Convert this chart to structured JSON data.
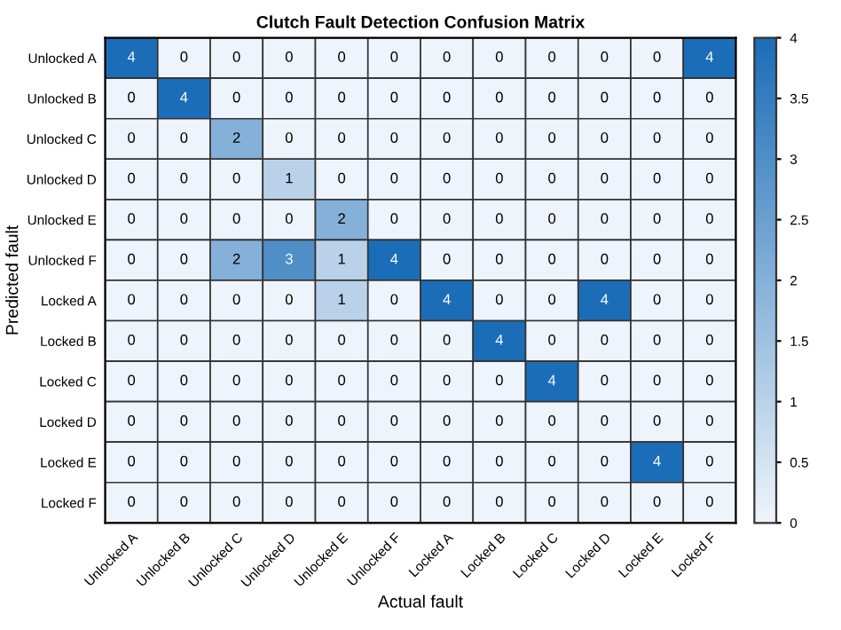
{
  "chart_data": {
    "type": "heatmap",
    "title": "Clutch Fault Detection Confusion Matrix",
    "xlabel": "Actual fault",
    "ylabel": "Predicted fault",
    "categories": [
      "Unlocked A",
      "Unlocked B",
      "Unlocked C",
      "Unlocked D",
      "Unlocked E",
      "Unlocked F",
      "Locked A",
      "Locked B",
      "Locked C",
      "Locked D",
      "Locked E",
      "Locked F"
    ],
    "y_categories": [
      "Unlocked A",
      "Unlocked B",
      "Unlocked C",
      "Unlocked D",
      "Unlocked E",
      "Unlocked F",
      "Locked A",
      "Locked B",
      "Locked C",
      "Locked D",
      "Locked E",
      "Locked F"
    ],
    "cells": [
      [
        4,
        0,
        0,
        0,
        0,
        0,
        0,
        0,
        0,
        0,
        0,
        4
      ],
      [
        0,
        4,
        0,
        0,
        0,
        0,
        0,
        0,
        0,
        0,
        0,
        0
      ],
      [
        0,
        0,
        2,
        0,
        0,
        0,
        0,
        0,
        0,
        0,
        0,
        0
      ],
      [
        0,
        0,
        0,
        1,
        0,
        0,
        0,
        0,
        0,
        0,
        0,
        0
      ],
      [
        0,
        0,
        0,
        0,
        2,
        0,
        0,
        0,
        0,
        0,
        0,
        0
      ],
      [
        0,
        0,
        2,
        3,
        1,
        4,
        0,
        0,
        0,
        0,
        0,
        0
      ],
      [
        0,
        0,
        0,
        0,
        1,
        0,
        4,
        0,
        0,
        4,
        0,
        0
      ],
      [
        0,
        0,
        0,
        0,
        0,
        0,
        0,
        4,
        0,
        0,
        0,
        0
      ],
      [
        0,
        0,
        0,
        0,
        0,
        0,
        0,
        0,
        4,
        0,
        0,
        0
      ],
      [
        0,
        0,
        0,
        0,
        0,
        0,
        0,
        0,
        0,
        0,
        0,
        0
      ],
      [
        0,
        0,
        0,
        0,
        0,
        0,
        0,
        0,
        0,
        0,
        4,
        0
      ],
      [
        0,
        0,
        0,
        0,
        0,
        0,
        0,
        0,
        0,
        0,
        0,
        0
      ]
    ],
    "clim": [
      0,
      4
    ],
    "cticks": [
      0,
      0.5,
      1,
      1.5,
      2,
      2.5,
      3,
      3.5,
      4
    ],
    "data_labels": true
  }
}
